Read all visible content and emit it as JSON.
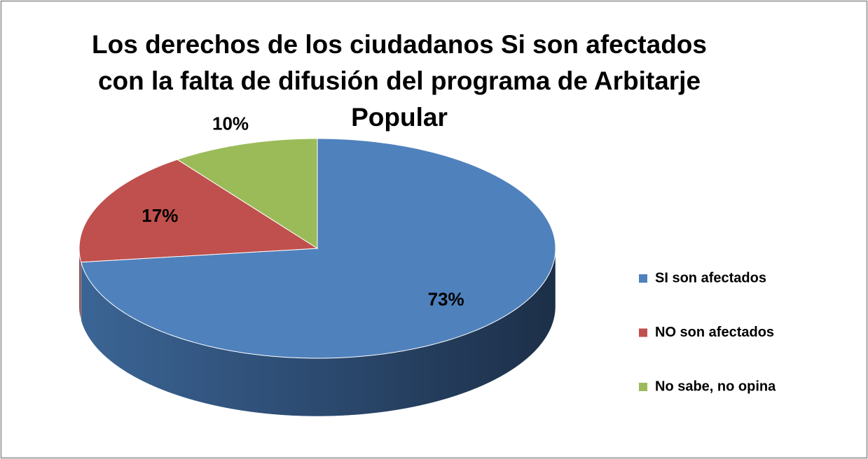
{
  "chart_data": {
    "type": "pie",
    "title": "Los derechos  de los ciudadanos Si son afectados con la falta de difusión del programa de Arbitarje Popular",
    "categories": [
      "SI son afectados",
      "NO son afectados",
      "No sabe, no opina"
    ],
    "values": [
      73,
      17,
      10
    ],
    "value_labels": [
      "73%",
      "17%",
      "10%"
    ],
    "colors": [
      "#4f81bd",
      "#c0504d",
      "#9bbb59"
    ],
    "legend": "right"
  }
}
